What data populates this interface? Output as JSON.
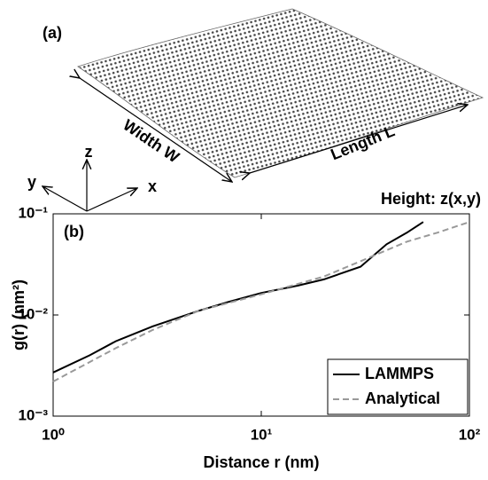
{
  "panel_a": {
    "label": "(a)",
    "width_label": "Width W",
    "length_label": "Length L",
    "axis_z": "z",
    "axis_y": "y",
    "axis_x": "x",
    "height_label": "Height: z(x,y)"
  },
  "chart_data": {
    "type": "line",
    "title": "(b)",
    "x_label": "Distance r (nm)",
    "y_label": "g(r) (nm²)",
    "log_x": true,
    "log_y": true,
    "xlim": [
      1,
      100
    ],
    "ylim": [
      0.001,
      0.1
    ],
    "xticks": [
      {
        "value": 1,
        "label": "10⁰"
      },
      {
        "value": 10,
        "label": "10¹"
      },
      {
        "value": 100,
        "label": "10²"
      }
    ],
    "yticks": [
      {
        "value": 0.001,
        "label": "10⁻³"
      },
      {
        "value": 0.01,
        "label": "10⁻²"
      },
      {
        "value": 0.1,
        "label": "10⁻¹"
      }
    ],
    "legend": "lower-right",
    "series": [
      {
        "name": "LAMMPS",
        "color": "#000000",
        "dash": "solid",
        "x": [
          1,
          1.5,
          2,
          3,
          5,
          7,
          10,
          15,
          20,
          30,
          40,
          50,
          60
        ],
        "values": [
          0.0027,
          0.004,
          0.0055,
          0.0077,
          0.011,
          0.0135,
          0.0165,
          0.0195,
          0.0225,
          0.03,
          0.05,
          0.065,
          0.083
        ]
      },
      {
        "name": "Analytical",
        "color": "#999999",
        "dash": "dashed",
        "x": [
          1,
          2,
          3,
          5,
          10,
          20,
          30,
          50,
          70,
          100
        ],
        "values": [
          0.0022,
          0.0047,
          0.0071,
          0.011,
          0.016,
          0.024,
          0.034,
          0.053,
          0.065,
          0.083
        ]
      }
    ]
  }
}
